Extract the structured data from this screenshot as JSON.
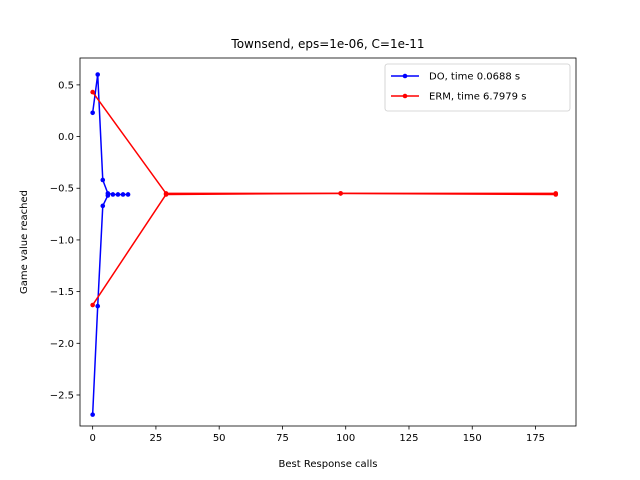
{
  "chart_data": {
    "type": "line",
    "title": "Townsend, eps=1e-06, C=1e-11",
    "xlabel": "Best Response calls",
    "ylabel": "Game value reached",
    "xlim": [
      -5,
      191
    ],
    "ylim": [
      -2.8,
      0.76
    ],
    "xticks": [
      0,
      25,
      50,
      75,
      100,
      125,
      150,
      175
    ],
    "yticks": [
      0.5,
      0.0,
      -0.5,
      -1.0,
      -1.5,
      -2.0,
      -2.5
    ],
    "xtick_labels": [
      "0",
      "25",
      "50",
      "75",
      "100",
      "125",
      "150",
      "175"
    ],
    "ytick_labels": [
      "0.5",
      "0.0",
      "−0.5",
      "−1.0",
      "−1.5",
      "−2.0",
      "−2.5"
    ],
    "grid": false,
    "legend_position": "upper-right",
    "series": [
      {
        "name": "DO, time 0.0688 s",
        "color": "#0000ff",
        "marker": "dot",
        "lines": [
          {
            "x": [
              0,
              2,
              4,
              6,
              8,
              10,
              12,
              14
            ],
            "y": [
              0.23,
              0.6,
              -0.42,
              -0.55,
              -0.56,
              -0.56,
              -0.56,
              -0.56
            ]
          },
          {
            "x": [
              0,
              2,
              4,
              6
            ],
            "y": [
              -2.69,
              -1.64,
              -0.67,
              -0.57
            ]
          }
        ]
      },
      {
        "name": "ERM, time 6.7979 s",
        "color": "#ff0000",
        "marker": "dot",
        "lines": [
          {
            "x": [
              0,
              29,
              98,
              183
            ],
            "y": [
              0.43,
              -0.55,
              -0.55,
              -0.55
            ]
          },
          {
            "x": [
              0,
              29,
              98,
              183
            ],
            "y": [
              -1.63,
              -0.56,
              -0.55,
              -0.56
            ]
          }
        ]
      }
    ]
  }
}
